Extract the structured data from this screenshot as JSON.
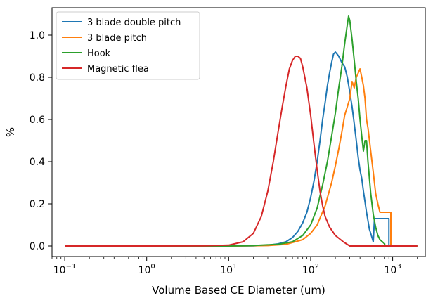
{
  "chart_data": {
    "type": "line",
    "title": "",
    "xlabel": "Volume Based CE Diameter (um)",
    "ylabel": "%",
    "xscale": "log",
    "xlim": [
      0.07,
      2500
    ],
    "ylim": [
      -0.05,
      1.13
    ],
    "x_ticks": [
      {
        "value": 0.1,
        "label": "10",
        "exp": "−1"
      },
      {
        "value": 1,
        "label": "10",
        "exp": "0"
      },
      {
        "value": 10,
        "label": "10",
        "exp": "1"
      },
      {
        "value": 100,
        "label": "10",
        "exp": "2"
      },
      {
        "value": 1000,
        "label": "10",
        "exp": "3"
      }
    ],
    "y_ticks": [
      {
        "value": 0.0,
        "label": "0.0"
      },
      {
        "value": 0.2,
        "label": "0.2"
      },
      {
        "value": 0.4,
        "label": "0.4"
      },
      {
        "value": 0.6,
        "label": "0.6"
      },
      {
        "value": 0.8,
        "label": "0.8"
      },
      {
        "value": 1.0,
        "label": "1.0"
      }
    ],
    "legend_position": "top-left",
    "grid": false,
    "series": [
      {
        "name": "3 blade double pitch",
        "color": "#1f77b4",
        "x": [
          0.1,
          1,
          10,
          20,
          30,
          40,
          50,
          60,
          70,
          80,
          90,
          100,
          110,
          120,
          130,
          140,
          150,
          160,
          170,
          180,
          190,
          200,
          210,
          220,
          240,
          260,
          280,
          300,
          320,
          340,
          360,
          380,
          400,
          420,
          440,
          460,
          480,
          500,
          520,
          540,
          560,
          580,
          600,
          600,
          700,
          800,
          900,
          900,
          1000,
          2000
        ],
        "y": [
          0.0,
          0.0,
          0.0,
          0.001,
          0.004,
          0.01,
          0.02,
          0.04,
          0.07,
          0.11,
          0.16,
          0.23,
          0.31,
          0.4,
          0.5,
          0.6,
          0.68,
          0.76,
          0.82,
          0.87,
          0.91,
          0.92,
          0.91,
          0.9,
          0.87,
          0.85,
          0.8,
          0.73,
          0.66,
          0.58,
          0.5,
          0.42,
          0.36,
          0.32,
          0.26,
          0.21,
          0.16,
          0.12,
          0.08,
          0.06,
          0.04,
          0.02,
          0.13,
          0.13,
          0.13,
          0.13,
          0.13,
          0.0,
          0.0,
          0.0
        ]
      },
      {
        "name": "3 blade pitch",
        "color": "#ff7f0e",
        "x": [
          0.1,
          1,
          10,
          30,
          50,
          80,
          100,
          120,
          150,
          180,
          200,
          220,
          240,
          260,
          280,
          300,
          320,
          340,
          360,
          380,
          400,
          420,
          440,
          460,
          480,
          500,
          540,
          580,
          620,
          660,
          700,
          700,
          800,
          900,
          950,
          950,
          1000,
          2000
        ],
        "y": [
          0.0,
          0.0,
          0.0,
          0.002,
          0.008,
          0.03,
          0.06,
          0.1,
          0.19,
          0.3,
          0.38,
          0.46,
          0.54,
          0.62,
          0.66,
          0.7,
          0.78,
          0.75,
          0.8,
          0.82,
          0.84,
          0.8,
          0.76,
          0.7,
          0.6,
          0.56,
          0.45,
          0.35,
          0.25,
          0.2,
          0.16,
          0.16,
          0.16,
          0.16,
          0.16,
          0.0,
          0.0,
          0.0
        ]
      },
      {
        "name": "Hook",
        "color": "#2ca02c",
        "x": [
          0.1,
          1,
          10,
          20,
          40,
          60,
          80,
          100,
          120,
          140,
          160,
          180,
          200,
          220,
          240,
          260,
          280,
          290,
          300,
          320,
          340,
          360,
          380,
          400,
          420,
          440,
          460,
          480,
          500,
          540,
          580,
          620,
          660,
          700,
          750,
          800,
          800,
          1000,
          2000
        ],
        "y": [
          0.0,
          0.0,
          0.0,
          0.002,
          0.008,
          0.02,
          0.05,
          0.1,
          0.18,
          0.29,
          0.4,
          0.52,
          0.63,
          0.75,
          0.85,
          0.96,
          1.05,
          1.09,
          1.07,
          0.98,
          0.88,
          0.78,
          0.7,
          0.6,
          0.52,
          0.45,
          0.5,
          0.5,
          0.4,
          0.25,
          0.15,
          0.09,
          0.05,
          0.03,
          0.02,
          0.01,
          0.0,
          0.0,
          0.0
        ]
      },
      {
        "name": "Magnetic flea",
        "color": "#d62728",
        "x": [
          0.1,
          1,
          5,
          10,
          15,
          20,
          25,
          30,
          35,
          40,
          45,
          50,
          55,
          60,
          65,
          70,
          75,
          80,
          90,
          100,
          110,
          120,
          130,
          140,
          150,
          170,
          200,
          250,
          300,
          400,
          1000,
          2000
        ],
        "y": [
          0.0,
          0.0,
          0.001,
          0.004,
          0.02,
          0.06,
          0.14,
          0.26,
          0.4,
          0.54,
          0.66,
          0.76,
          0.84,
          0.88,
          0.9,
          0.9,
          0.89,
          0.85,
          0.75,
          0.62,
          0.48,
          0.36,
          0.26,
          0.19,
          0.14,
          0.09,
          0.05,
          0.02,
          0.0,
          0.0,
          0.0,
          0.0
        ]
      }
    ]
  }
}
